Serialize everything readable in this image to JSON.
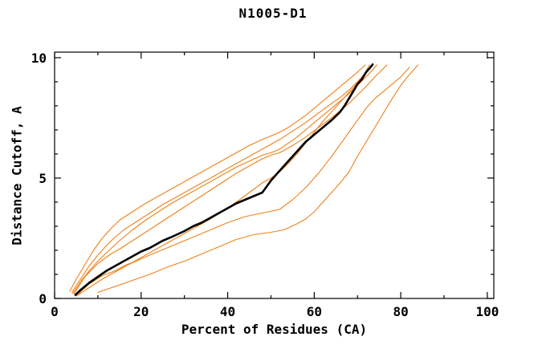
{
  "chart_data": {
    "type": "line",
    "title": "N1005-D1",
    "xlabel": "Percent of Residues (CA)",
    "ylabel": "Distance Cutoff, A",
    "xlim": [
      0,
      101.5
    ],
    "ylim": [
      0,
      10.23
    ],
    "xticks_major": [
      0,
      20,
      40,
      60,
      80,
      100
    ],
    "xticks_minor": [
      10,
      30,
      50,
      70,
      90
    ],
    "yticks_major": [
      0,
      5,
      10
    ],
    "yticks_minor": [
      1,
      2,
      3,
      4,
      6,
      7,
      8,
      9
    ],
    "grid": false,
    "legend": "none",
    "colors": {
      "model": "#ee8019",
      "reference": "#000000",
      "axis": "#000000"
    },
    "series": [
      {
        "name": "model-curve-1",
        "color": "#ee8019",
        "width": 1.1,
        "points": [
          [
            3.5,
            0.3
          ],
          [
            5,
            0.8
          ],
          [
            7,
            1.4
          ],
          [
            9,
            2.0
          ],
          [
            11,
            2.5
          ],
          [
            13,
            2.9
          ],
          [
            15,
            3.25
          ],
          [
            18,
            3.6
          ],
          [
            21,
            3.95
          ],
          [
            24,
            4.25
          ],
          [
            27,
            4.55
          ],
          [
            30,
            4.85
          ],
          [
            33,
            5.15
          ],
          [
            36,
            5.45
          ],
          [
            39,
            5.75
          ],
          [
            42,
            6.05
          ],
          [
            45,
            6.35
          ],
          [
            48,
            6.6
          ],
          [
            50,
            6.75
          ],
          [
            52,
            6.9
          ],
          [
            54,
            7.1
          ],
          [
            56,
            7.35
          ],
          [
            58,
            7.6
          ],
          [
            60,
            7.9
          ],
          [
            62,
            8.2
          ],
          [
            64,
            8.5
          ],
          [
            66,
            8.8
          ],
          [
            68,
            9.1
          ],
          [
            70,
            9.4
          ],
          [
            71.8,
            9.7
          ]
        ]
      },
      {
        "name": "model-curve-2",
        "color": "#ee8019",
        "width": 1.1,
        "points": [
          [
            4,
            0.25
          ],
          [
            6,
            0.8
          ],
          [
            8,
            1.35
          ],
          [
            10,
            1.8
          ],
          [
            12,
            2.2
          ],
          [
            14,
            2.55
          ],
          [
            16,
            2.85
          ],
          [
            19,
            3.2
          ],
          [
            22,
            3.55
          ],
          [
            25,
            3.9
          ],
          [
            28,
            4.2
          ],
          [
            31,
            4.5
          ],
          [
            34,
            4.8
          ],
          [
            37,
            5.1
          ],
          [
            40,
            5.4
          ],
          [
            43,
            5.7
          ],
          [
            46,
            6.0
          ],
          [
            49,
            6.3
          ],
          [
            52,
            6.6
          ],
          [
            55,
            6.95
          ],
          [
            58,
            7.3
          ],
          [
            61,
            7.7
          ],
          [
            64,
            8.1
          ],
          [
            66,
            8.35
          ],
          [
            68,
            8.65
          ],
          [
            70,
            9.0
          ],
          [
            72,
            9.4
          ],
          [
            73,
            9.65
          ]
        ]
      },
      {
        "name": "model-curve-3",
        "color": "#ee8019",
        "width": 1.1,
        "points": [
          [
            4.2,
            0.2
          ],
          [
            6,
            0.7
          ],
          [
            8,
            1.15
          ],
          [
            10,
            1.55
          ],
          [
            12,
            1.9
          ],
          [
            15,
            2.4
          ],
          [
            18,
            2.85
          ],
          [
            21,
            3.25
          ],
          [
            24,
            3.6
          ],
          [
            27,
            3.95
          ],
          [
            30,
            4.25
          ],
          [
            33,
            4.55
          ],
          [
            36,
            4.85
          ],
          [
            39,
            5.15
          ],
          [
            42,
            5.45
          ],
          [
            45,
            5.7
          ],
          [
            48,
            5.95
          ],
          [
            50,
            6.05
          ],
          [
            52,
            6.2
          ],
          [
            54,
            6.45
          ],
          [
            56,
            6.7
          ],
          [
            58,
            7.0
          ],
          [
            60,
            7.3
          ],
          [
            62,
            7.6
          ],
          [
            64,
            7.9
          ],
          [
            66,
            8.2
          ],
          [
            68,
            8.5
          ],
          [
            70,
            8.85
          ],
          [
            72,
            9.2
          ],
          [
            74,
            9.6
          ],
          [
            74.5,
            9.7
          ]
        ]
      },
      {
        "name": "model-curve-4",
        "color": "#ee8019",
        "width": 1.1,
        "points": [
          [
            4.5,
            0.2
          ],
          [
            7,
            0.9
          ],
          [
            10,
            1.45
          ],
          [
            13,
            1.85
          ],
          [
            15,
            2.05
          ],
          [
            18,
            2.4
          ],
          [
            21,
            2.75
          ],
          [
            24,
            3.1
          ],
          [
            27,
            3.45
          ],
          [
            30,
            3.8
          ],
          [
            33,
            4.15
          ],
          [
            36,
            4.5
          ],
          [
            39,
            4.85
          ],
          [
            42,
            5.2
          ],
          [
            45,
            5.5
          ],
          [
            48,
            5.8
          ],
          [
            50,
            5.95
          ],
          [
            52,
            6.05
          ],
          [
            55,
            6.35
          ],
          [
            58,
            6.7
          ],
          [
            61,
            7.1
          ],
          [
            64,
            7.5
          ],
          [
            66,
            7.8
          ],
          [
            68,
            8.1
          ],
          [
            70,
            8.45
          ],
          [
            72,
            8.8
          ],
          [
            74,
            9.2
          ],
          [
            76,
            9.55
          ],
          [
            76.8,
            9.7
          ]
        ]
      },
      {
        "name": "model-curve-5",
        "color": "#ee8019",
        "width": 1.1,
        "points": [
          [
            5,
            0.12
          ],
          [
            8,
            0.6
          ],
          [
            11,
            0.95
          ],
          [
            14,
            1.15
          ],
          [
            16,
            1.35
          ],
          [
            18,
            1.5
          ],
          [
            21,
            1.8
          ],
          [
            24,
            2.1
          ],
          [
            27,
            2.4
          ],
          [
            30,
            2.7
          ],
          [
            33,
            3.0
          ],
          [
            36,
            3.3
          ],
          [
            39,
            3.65
          ],
          [
            42,
            4.0
          ],
          [
            45,
            4.4
          ],
          [
            48,
            4.8
          ],
          [
            50,
            5.0
          ],
          [
            52,
            5.25
          ],
          [
            54,
            5.6
          ],
          [
            56,
            6.0
          ],
          [
            58,
            6.45
          ],
          [
            60,
            6.9
          ],
          [
            62,
            7.35
          ],
          [
            64,
            7.75
          ],
          [
            66,
            8.15
          ],
          [
            68,
            8.55
          ],
          [
            70,
            8.95
          ],
          [
            71.5,
            9.3
          ],
          [
            72.8,
            9.7
          ]
        ]
      },
      {
        "name": "model-curve-6",
        "color": "#ee8019",
        "width": 1.1,
        "points": [
          [
            5,
            0.1
          ],
          [
            8,
            0.45
          ],
          [
            11,
            0.8
          ],
          [
            14,
            1.1
          ],
          [
            17,
            1.4
          ],
          [
            20,
            1.65
          ],
          [
            24,
            1.95
          ],
          [
            28,
            2.25
          ],
          [
            32,
            2.55
          ],
          [
            36,
            2.85
          ],
          [
            40,
            3.15
          ],
          [
            44,
            3.4
          ],
          [
            48,
            3.55
          ],
          [
            52,
            3.7
          ],
          [
            55,
            4.1
          ],
          [
            58,
            4.6
          ],
          [
            61,
            5.2
          ],
          [
            64,
            5.9
          ],
          [
            66,
            6.4
          ],
          [
            68,
            6.9
          ],
          [
            70,
            7.4
          ],
          [
            72,
            7.9
          ],
          [
            74,
            8.3
          ],
          [
            77,
            8.75
          ],
          [
            80,
            9.2
          ],
          [
            82,
            9.6
          ]
        ]
      },
      {
        "name": "model-curve-7",
        "color": "#ee8019",
        "width": 1.1,
        "points": [
          [
            10,
            0.25
          ],
          [
            14,
            0.5
          ],
          [
            18,
            0.75
          ],
          [
            22,
            1.0
          ],
          [
            26,
            1.3
          ],
          [
            30,
            1.55
          ],
          [
            34,
            1.85
          ],
          [
            38,
            2.15
          ],
          [
            42,
            2.45
          ],
          [
            46,
            2.65
          ],
          [
            50,
            2.75
          ],
          [
            53,
            2.85
          ],
          [
            56,
            3.1
          ],
          [
            58,
            3.3
          ],
          [
            60,
            3.6
          ],
          [
            62,
            4.0
          ],
          [
            64,
            4.4
          ],
          [
            66,
            4.8
          ],
          [
            68,
            5.25
          ],
          [
            70,
            5.9
          ],
          [
            72,
            6.5
          ],
          [
            74,
            7.1
          ],
          [
            76,
            7.7
          ],
          [
            78,
            8.3
          ],
          [
            80,
            8.85
          ],
          [
            82,
            9.3
          ],
          [
            84,
            9.7
          ]
        ]
      },
      {
        "name": "reference-curve",
        "color": "#000000",
        "width": 2.6,
        "points": [
          [
            4.8,
            0.15
          ],
          [
            6,
            0.35
          ],
          [
            8,
            0.65
          ],
          [
            10,
            0.9
          ],
          [
            12,
            1.15
          ],
          [
            15,
            1.45
          ],
          [
            17,
            1.65
          ],
          [
            20,
            1.95
          ],
          [
            22,
            2.1
          ],
          [
            25,
            2.4
          ],
          [
            27,
            2.55
          ],
          [
            30,
            2.8
          ],
          [
            32,
            3.0
          ],
          [
            34,
            3.15
          ],
          [
            36,
            3.35
          ],
          [
            38,
            3.55
          ],
          [
            40,
            3.75
          ],
          [
            42,
            3.95
          ],
          [
            44,
            4.1
          ],
          [
            46,
            4.25
          ],
          [
            48,
            4.4
          ],
          [
            50,
            4.9
          ],
          [
            52,
            5.3
          ],
          [
            54,
            5.7
          ],
          [
            56,
            6.1
          ],
          [
            58,
            6.5
          ],
          [
            60,
            6.8
          ],
          [
            62,
            7.1
          ],
          [
            64,
            7.4
          ],
          [
            66,
            7.75
          ],
          [
            67,
            8.0
          ],
          [
            68,
            8.3
          ],
          [
            69,
            8.6
          ],
          [
            70,
            8.9
          ],
          [
            71,
            9.1
          ],
          [
            72,
            9.4
          ],
          [
            73,
            9.6
          ],
          [
            73.5,
            9.72
          ]
        ]
      }
    ]
  }
}
